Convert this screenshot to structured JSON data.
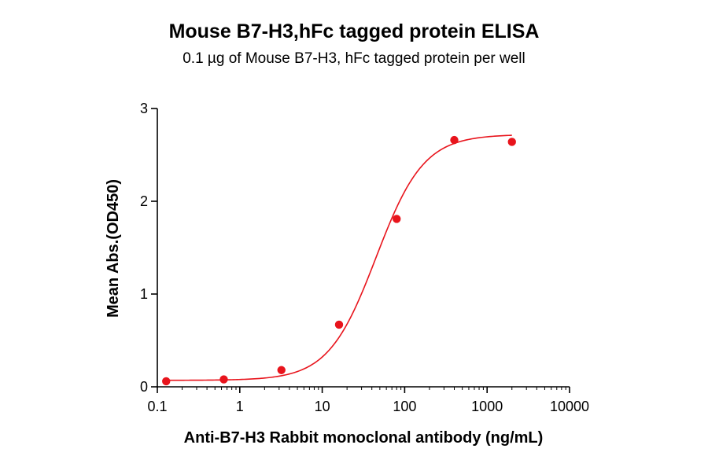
{
  "chart_data": {
    "type": "scatter",
    "title": "Mouse B7-H3,hFc tagged protein ELISA",
    "subtitle": "0.1 µg of Mouse B7-H3, hFc tagged protein per well",
    "xlabel": "Anti-B7-H3 Rabbit monoclonal antibody (ng/mL)",
    "ylabel": "Mean Abs.(OD450)",
    "x_scale": "log",
    "xlim": [
      0.1,
      10000
    ],
    "ylim": [
      0,
      3
    ],
    "x_ticks": [
      "0.1",
      "1",
      "10",
      "100",
      "1000",
      "10000"
    ],
    "y_ticks": [
      "0",
      "1",
      "2",
      "3"
    ],
    "grid": false,
    "colors": {
      "points": "#e8141c",
      "curve": "#e8141c",
      "axes": "#000000"
    },
    "series": [
      {
        "x": [
          0.128,
          0.64,
          3.2,
          16,
          80,
          400,
          2000
        ],
        "y": [
          0.06,
          0.08,
          0.18,
          0.67,
          1.81,
          2.66,
          2.64
        ]
      }
    ],
    "fit": {
      "type": "4PL",
      "bottom": 0.07,
      "top": 2.72,
      "ec50": 45,
      "hill": 1.5
    }
  }
}
